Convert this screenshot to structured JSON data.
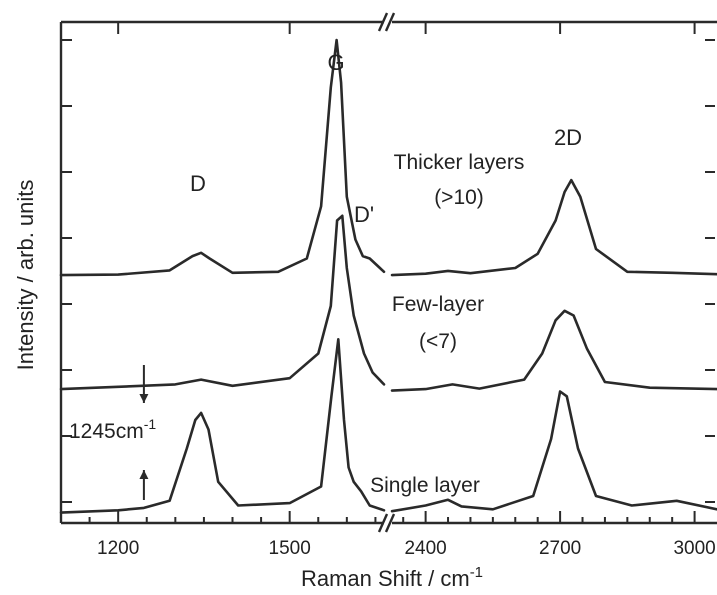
{
  "chart_data": {
    "type": "line",
    "title": "",
    "xlabel": "Raman Shift / cm",
    "xlabel_sup": "-1",
    "ylabel": "Intensity / arb. units",
    "x_axis_broken": true,
    "segments": [
      {
        "xlim": [
          1100,
          1665
        ],
        "ticks": [
          1200,
          1500
        ]
      },
      {
        "xlim": [
          2325,
          3050
        ],
        "ticks": [
          2400,
          2700,
          3000
        ]
      }
    ],
    "ylim": [
      0,
      1
    ],
    "grid": false,
    "series": [
      {
        "name": "Thicker layers (>10)",
        "baseline": 0.505,
        "x": [
          1100,
          1200,
          1290,
          1330,
          1345,
          1360,
          1400,
          1480,
          1530,
          1555,
          1572,
          1582,
          1590,
          1600,
          1615,
          1628,
          1640,
          1665,
          2325,
          2400,
          2450,
          2500,
          2600,
          2650,
          2690,
          2710,
          2725,
          2745,
          2780,
          2850,
          2950,
          3050
        ],
        "y": [
          0.505,
          0.506,
          0.515,
          0.545,
          0.552,
          0.54,
          0.51,
          0.512,
          0.54,
          0.65,
          0.9,
          1.0,
          0.91,
          0.67,
          0.58,
          0.545,
          0.54,
          0.512,
          0.505,
          0.508,
          0.514,
          0.509,
          0.52,
          0.55,
          0.62,
          0.68,
          0.705,
          0.67,
          0.56,
          0.512,
          0.51,
          0.507
        ]
      },
      {
        "name": "Few-layer (<7)",
        "baseline": 0.265,
        "x": [
          1100,
          1200,
          1300,
          1345,
          1400,
          1500,
          1550,
          1572,
          1583,
          1592,
          1600,
          1612,
          1630,
          1645,
          1665,
          2325,
          2400,
          2460,
          2520,
          2620,
          2660,
          2690,
          2710,
          2730,
          2760,
          2800,
          2900,
          3050
        ],
        "y": [
          0.265,
          0.27,
          0.275,
          0.285,
          0.272,
          0.288,
          0.34,
          0.44,
          0.62,
          0.63,
          0.52,
          0.42,
          0.34,
          0.3,
          0.275,
          0.262,
          0.265,
          0.275,
          0.266,
          0.285,
          0.34,
          0.41,
          0.43,
          0.42,
          0.35,
          0.28,
          0.268,
          0.265
        ]
      },
      {
        "name": "Single layer",
        "baseline": 0.005,
        "x": [
          1100,
          1200,
          1245,
          1290,
          1320,
          1335,
          1345,
          1358,
          1375,
          1410,
          1500,
          1555,
          1573,
          1585,
          1595,
          1603,
          1612,
          1625,
          1640,
          1665,
          2325,
          2400,
          2450,
          2480,
          2550,
          2640,
          2680,
          2700,
          2715,
          2740,
          2780,
          2860,
          2960,
          3050
        ],
        "y": [
          0.005,
          0.01,
          0.015,
          0.03,
          0.14,
          0.2,
          0.215,
          0.18,
          0.07,
          0.02,
          0.025,
          0.06,
          0.25,
          0.37,
          0.2,
          0.1,
          0.07,
          0.05,
          0.02,
          0.01,
          0.008,
          0.02,
          0.032,
          0.018,
          0.012,
          0.04,
          0.16,
          0.26,
          0.25,
          0.14,
          0.04,
          0.02,
          0.03,
          0.012
        ]
      }
    ],
    "annotations": {
      "peaks": [
        {
          "text": "D"
        },
        {
          "text": "G"
        },
        {
          "text": "D'"
        },
        {
          "text": "2D"
        }
      ],
      "curve_labels": [
        {
          "lines": [
            "Thicker layers",
            "(>10)"
          ]
        },
        {
          "lines": [
            "Few-layer",
            "(<7)"
          ]
        },
        {
          "lines": [
            "Single layer"
          ]
        }
      ],
      "marker": {
        "text": "1245cm",
        "sup": "-1",
        "x": 1245
      }
    }
  }
}
